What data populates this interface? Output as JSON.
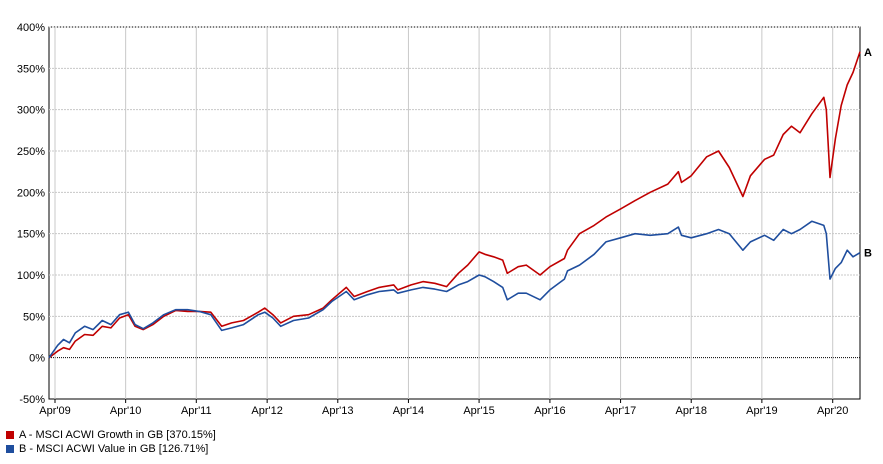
{
  "chart_data": {
    "type": "line",
    "title": "",
    "xlabel": "",
    "ylabel": "",
    "y_unit": "%",
    "ylim": [
      -50,
      400
    ],
    "y_ticks": [
      -50,
      0,
      50,
      100,
      150,
      200,
      250,
      300,
      350,
      400
    ],
    "y_tick_labels": [
      "-50%",
      "0%",
      "50%",
      "100%",
      "150%",
      "200%",
      "250%",
      "300%",
      "350%",
      "400%"
    ],
    "x_start": "2009-03-01",
    "x_end": "2020-08-20",
    "x_tick_dates": [
      "2009-04-01",
      "2010-04-01",
      "2011-04-01",
      "2012-04-01",
      "2013-04-01",
      "2014-04-01",
      "2015-04-01",
      "2016-04-01",
      "2017-04-01",
      "2018-04-01",
      "2019-04-01",
      "2020-04-01"
    ],
    "x_tick_labels": [
      "Apr'09",
      "Apr'10",
      "Apr'11",
      "Apr'12",
      "Apr'13",
      "Apr'14",
      "Apr'15",
      "Apr'16",
      "Apr'17",
      "Apr'18",
      "Apr'19",
      "Apr'20"
    ],
    "grid": true,
    "baseline": 0,
    "series": [
      {
        "name": "A - MSCI ACWI Growth in GB [370.15%]",
        "end_label": "A",
        "color": "#c00000",
        "points": [
          [
            "2009-03-01",
            0
          ],
          [
            "2009-04-15",
            8
          ],
          [
            "2009-05-15",
            12
          ],
          [
            "2009-06-15",
            10
          ],
          [
            "2009-07-15",
            20
          ],
          [
            "2009-09-01",
            28
          ],
          [
            "2009-10-15",
            27
          ],
          [
            "2009-12-01",
            38
          ],
          [
            "2010-01-15",
            36
          ],
          [
            "2010-03-01",
            48
          ],
          [
            "2010-04-15",
            52
          ],
          [
            "2010-05-20",
            38
          ],
          [
            "2010-07-01",
            34
          ],
          [
            "2010-08-20",
            40
          ],
          [
            "2010-10-15",
            50
          ],
          [
            "2010-12-15",
            57
          ],
          [
            "2011-02-15",
            56
          ],
          [
            "2011-04-15",
            56
          ],
          [
            "2011-06-15",
            55
          ],
          [
            "2011-08-10",
            38
          ],
          [
            "2011-10-01",
            42
          ],
          [
            "2011-12-01",
            45
          ],
          [
            "2012-02-15",
            55
          ],
          [
            "2012-03-20",
            60
          ],
          [
            "2012-05-01",
            52
          ],
          [
            "2012-06-10",
            42
          ],
          [
            "2012-08-15",
            50
          ],
          [
            "2012-11-01",
            52
          ],
          [
            "2013-01-15",
            60
          ],
          [
            "2013-03-01",
            70
          ],
          [
            "2013-05-15",
            85
          ],
          [
            "2013-06-25",
            74
          ],
          [
            "2013-09-01",
            80
          ],
          [
            "2013-11-01",
            85
          ],
          [
            "2014-01-15",
            88
          ],
          [
            "2014-02-05",
            82
          ],
          [
            "2014-04-15",
            88
          ],
          [
            "2014-06-15",
            92
          ],
          [
            "2014-08-15",
            90
          ],
          [
            "2014-10-15",
            86
          ],
          [
            "2014-12-15",
            102
          ],
          [
            "2015-02-01",
            112
          ],
          [
            "2015-04-01",
            128
          ],
          [
            "2015-05-01",
            125
          ],
          [
            "2015-06-15",
            122
          ],
          [
            "2015-08-01",
            118
          ],
          [
            "2015-08-25",
            102
          ],
          [
            "2015-10-20",
            110
          ],
          [
            "2015-12-01",
            112
          ],
          [
            "2016-02-10",
            100
          ],
          [
            "2016-04-01",
            110
          ],
          [
            "2016-06-15",
            120
          ],
          [
            "2016-07-01",
            130
          ],
          [
            "2016-09-01",
            150
          ],
          [
            "2016-11-15",
            160
          ],
          [
            "2017-01-15",
            170
          ],
          [
            "2017-04-01",
            180
          ],
          [
            "2017-06-15",
            190
          ],
          [
            "2017-09-01",
            200
          ],
          [
            "2017-12-01",
            210
          ],
          [
            "2018-01-25",
            225
          ],
          [
            "2018-02-10",
            212
          ],
          [
            "2018-04-01",
            220
          ],
          [
            "2018-06-20",
            243
          ],
          [
            "2018-08-20",
            250
          ],
          [
            "2018-10-15",
            230
          ],
          [
            "2018-12-24",
            195
          ],
          [
            "2019-02-01",
            220
          ],
          [
            "2019-04-15",
            240
          ],
          [
            "2019-06-01",
            245
          ],
          [
            "2019-07-20",
            270
          ],
          [
            "2019-09-01",
            280
          ],
          [
            "2019-10-15",
            272
          ],
          [
            "2019-12-15",
            295
          ],
          [
            "2020-02-15",
            315
          ],
          [
            "2020-02-28",
            300
          ],
          [
            "2020-03-18",
            218
          ],
          [
            "2020-04-15",
            265
          ],
          [
            "2020-05-15",
            305
          ],
          [
            "2020-06-15",
            330
          ],
          [
            "2020-07-15",
            345
          ],
          [
            "2020-08-20",
            370
          ]
        ]
      },
      {
        "name": "B - MSCI ACWI Value in GB [126.71%]",
        "end_label": "B",
        "color": "#1f4e9e",
        "points": [
          [
            "2009-03-01",
            0
          ],
          [
            "2009-04-15",
            15
          ],
          [
            "2009-05-15",
            22
          ],
          [
            "2009-06-15",
            18
          ],
          [
            "2009-07-15",
            30
          ],
          [
            "2009-09-01",
            38
          ],
          [
            "2009-10-15",
            34
          ],
          [
            "2009-12-01",
            45
          ],
          [
            "2010-01-15",
            40
          ],
          [
            "2010-03-01",
            52
          ],
          [
            "2010-04-15",
            55
          ],
          [
            "2010-05-20",
            40
          ],
          [
            "2010-07-01",
            35
          ],
          [
            "2010-08-20",
            42
          ],
          [
            "2010-10-15",
            52
          ],
          [
            "2010-12-15",
            58
          ],
          [
            "2011-02-15",
            58
          ],
          [
            "2011-04-15",
            56
          ],
          [
            "2011-06-15",
            52
          ],
          [
            "2011-08-10",
            33
          ],
          [
            "2011-10-01",
            36
          ],
          [
            "2011-12-01",
            40
          ],
          [
            "2012-02-15",
            52
          ],
          [
            "2012-03-20",
            55
          ],
          [
            "2012-05-01",
            48
          ],
          [
            "2012-06-10",
            38
          ],
          [
            "2012-08-15",
            45
          ],
          [
            "2012-11-01",
            48
          ],
          [
            "2013-01-15",
            58
          ],
          [
            "2013-03-01",
            68
          ],
          [
            "2013-05-15",
            80
          ],
          [
            "2013-06-25",
            70
          ],
          [
            "2013-09-01",
            76
          ],
          [
            "2013-11-01",
            80
          ],
          [
            "2014-01-15",
            82
          ],
          [
            "2014-02-05",
            78
          ],
          [
            "2014-04-15",
            82
          ],
          [
            "2014-06-15",
            85
          ],
          [
            "2014-08-15",
            83
          ],
          [
            "2014-10-15",
            80
          ],
          [
            "2014-12-15",
            88
          ],
          [
            "2015-02-01",
            92
          ],
          [
            "2015-04-01",
            100
          ],
          [
            "2015-05-01",
            98
          ],
          [
            "2015-06-15",
            92
          ],
          [
            "2015-08-01",
            85
          ],
          [
            "2015-08-25",
            70
          ],
          [
            "2015-10-20",
            78
          ],
          [
            "2015-12-01",
            78
          ],
          [
            "2016-02-10",
            70
          ],
          [
            "2016-04-01",
            82
          ],
          [
            "2016-06-15",
            95
          ],
          [
            "2016-07-01",
            105
          ],
          [
            "2016-09-01",
            112
          ],
          [
            "2016-11-15",
            125
          ],
          [
            "2017-01-15",
            140
          ],
          [
            "2017-04-01",
            145
          ],
          [
            "2017-06-15",
            150
          ],
          [
            "2017-09-01",
            148
          ],
          [
            "2017-12-01",
            150
          ],
          [
            "2018-01-25",
            158
          ],
          [
            "2018-02-10",
            148
          ],
          [
            "2018-04-01",
            145
          ],
          [
            "2018-06-20",
            150
          ],
          [
            "2018-08-20",
            155
          ],
          [
            "2018-10-15",
            150
          ],
          [
            "2018-12-24",
            130
          ],
          [
            "2019-02-01",
            140
          ],
          [
            "2019-04-15",
            148
          ],
          [
            "2019-06-01",
            142
          ],
          [
            "2019-07-20",
            155
          ],
          [
            "2019-09-01",
            150
          ],
          [
            "2019-10-15",
            155
          ],
          [
            "2019-12-15",
            165
          ],
          [
            "2020-02-15",
            160
          ],
          [
            "2020-02-28",
            150
          ],
          [
            "2020-03-18",
            95
          ],
          [
            "2020-04-15",
            108
          ],
          [
            "2020-05-15",
            115
          ],
          [
            "2020-06-15",
            130
          ],
          [
            "2020-07-15",
            122
          ],
          [
            "2020-08-20",
            127
          ]
        ]
      }
    ]
  }
}
